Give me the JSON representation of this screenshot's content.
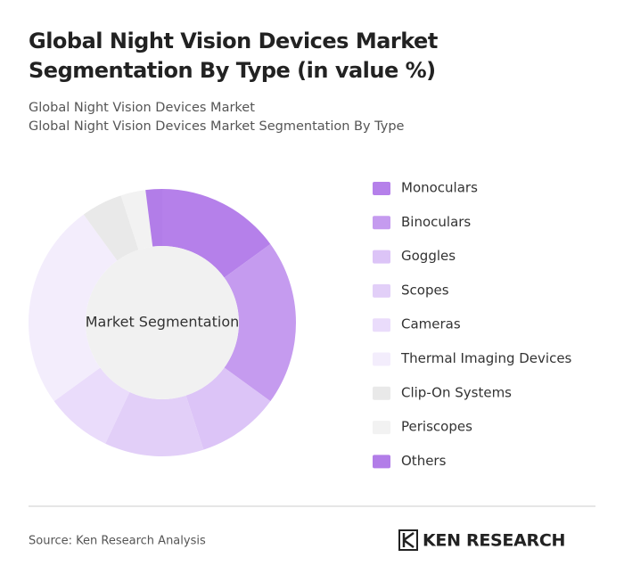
{
  "chart_data": {
    "type": "donut",
    "title": "Global Night Vision Devices Market Segmentation By Type (in value %)",
    "subtitles": [
      "Global Night Vision Devices Market",
      "Global Night Vision Devices Market Segmentation By Type"
    ],
    "center_label": "Market Segmentation",
    "series": [
      {
        "name": "Monoculars",
        "color": "#b580ea",
        "values": [
          15
        ]
      },
      {
        "name": "Binoculars",
        "color": "#c59bef",
        "values": [
          20
        ]
      },
      {
        "name": "Goggles",
        "color": "#dcc4f7",
        "values": [
          10
        ]
      },
      {
        "name": "Scopes",
        "color": "#e2cff8",
        "values": [
          12
        ]
      },
      {
        "name": "Cameras",
        "color": "#eadcfb",
        "values": [
          8
        ]
      },
      {
        "name": "Thermal Imaging Devices",
        "color": "#f3edfc",
        "values": [
          25
        ]
      },
      {
        "name": "Clip-On Systems",
        "color": "#e9e9e9",
        "values": [
          5
        ]
      },
      {
        "name": "Periscopes",
        "color": "#f2f2f2",
        "values": [
          3
        ]
      },
      {
        "name": "Others",
        "color": "#b27de8",
        "values": [
          2
        ]
      }
    ],
    "source": "Source: Ken Research Analysis",
    "brand": "KEN RESEARCH"
  }
}
